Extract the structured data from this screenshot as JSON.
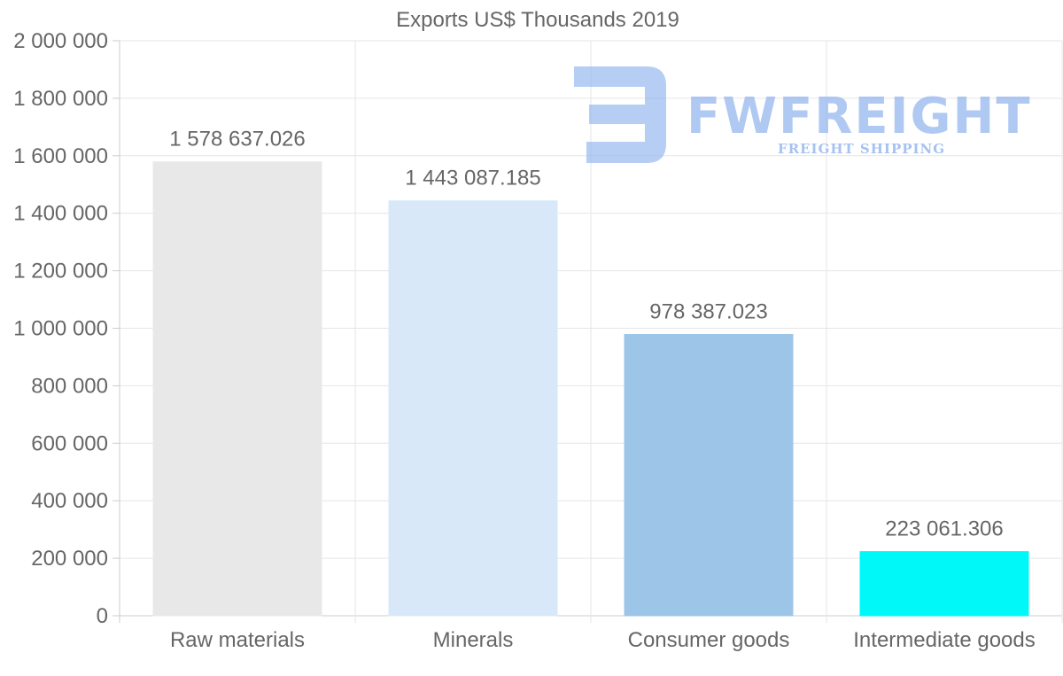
{
  "chart_data": {
    "type": "bar",
    "title": "Exports US$ Thousands 2019",
    "categories": [
      "Raw materials",
      "Minerals",
      "Consumer goods",
      "Intermediate goods"
    ],
    "values": [
      1578637.026,
      1443087.185,
      978387.023,
      223061.306
    ],
    "value_labels": [
      "1 578 637.026",
      "1 443 087.185",
      "978 387.023",
      "223 061.306"
    ],
    "colors": [
      "#e8e8e8",
      "#d8e8f8",
      "#9dc5e8",
      "#00f8f8"
    ],
    "ylim": [
      0,
      2000000
    ],
    "yticks": [
      0,
      200000,
      400000,
      600000,
      800000,
      1000000,
      1200000,
      1400000,
      1600000,
      1800000,
      2000000
    ],
    "ytick_labels": [
      "0",
      "200 000",
      "400 000",
      "600 000",
      "800 000",
      "1 000 000",
      "1 200 000",
      "1 400 000",
      "1 600 000",
      "1 800 000",
      "2 000 000"
    ],
    "xlabel": "",
    "ylabel": "",
    "grid": true
  },
  "watermark": {
    "brand": "FWFREIGHT",
    "tagline": "FREIGHT SHIPPING",
    "color": "#8fb3ee"
  }
}
